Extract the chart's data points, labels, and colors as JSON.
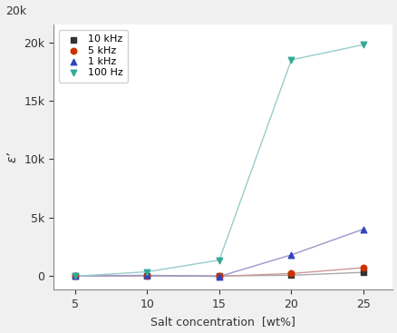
{
  "x": [
    5,
    10,
    15,
    20,
    25
  ],
  "series": [
    {
      "label": "10 kHz",
      "y": [
        0,
        5,
        0,
        50,
        300
      ],
      "color": "#333333",
      "marker": "s",
      "linecolor": "#aaaaaa"
    },
    {
      "label": "5 kHz",
      "y": [
        -5,
        5,
        -30,
        200,
        700
      ],
      "color": "#cc3300",
      "marker": "o",
      "linecolor": "#cc9999"
    },
    {
      "label": "1 kHz",
      "y": [
        -20,
        50,
        -50,
        1800,
        4000
      ],
      "color": "#3344bb",
      "marker": "^",
      "linecolor": "#9999cc"
    },
    {
      "label": "100 Hz",
      "y": [
        -30,
        350,
        1350,
        18500,
        19800
      ],
      "color": "#33aa99",
      "marker": "v",
      "linecolor": "#99cccc"
    }
  ],
  "xlabel": "Salt concentration  [wt%]",
  "ylabel": "ε’",
  "ylim": [
    -1200,
    21500
  ],
  "xlim": [
    3.5,
    27
  ],
  "xticks": [
    5,
    10,
    15,
    20,
    25
  ],
  "ytick_values": [
    0,
    5000,
    10000,
    15000,
    20000
  ],
  "ytick_labels": [
    "0",
    "5k",
    "10k",
    "15k",
    "20k"
  ],
  "legend_loc": "upper left",
  "figsize": [
    4.39,
    3.67
  ],
  "dpi": 100,
  "bg_color": "#f0f0f0",
  "axes_bg_color": "#ffffff"
}
